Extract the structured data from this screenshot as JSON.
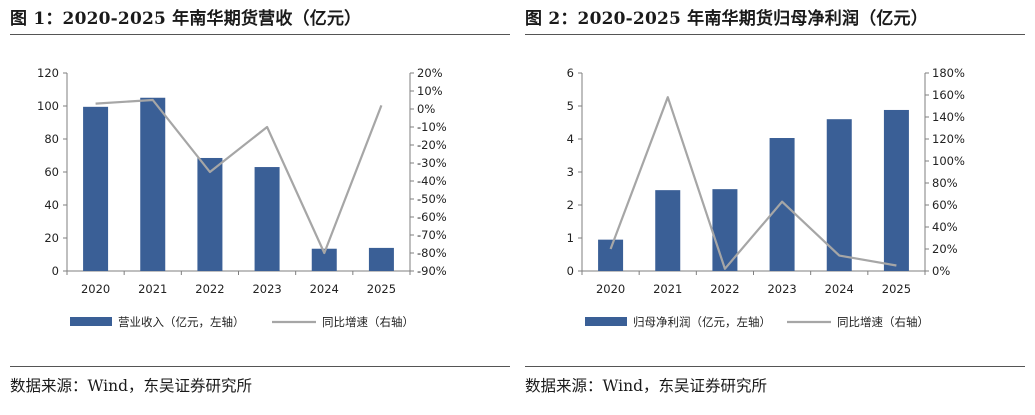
{
  "chart_data": [
    {
      "type": "bar",
      "title": "图 1：2020-2025 年南华期货营收（亿元）",
      "categories": [
        "2020",
        "2021",
        "2022",
        "2023",
        "2024",
        "2025"
      ],
      "series": [
        {
          "name": "营业收入（亿元，左轴）",
          "kind": "bar",
          "axis": "left",
          "values": [
            99.5,
            105,
            68.5,
            63,
            13.5,
            14
          ]
        },
        {
          "name": "同比增速（右轴）",
          "kind": "line",
          "axis": "right",
          "values": [
            3,
            5,
            -35,
            -10,
            -80,
            2
          ]
        }
      ],
      "left_axis": {
        "ylim": [
          0,
          120
        ],
        "ticks": [
          0,
          20,
          40,
          60,
          80,
          100,
          120
        ],
        "labels": [
          "0",
          "20",
          "40",
          "60",
          "80",
          "100",
          "120"
        ]
      },
      "right_axis": {
        "ylim": [
          -90,
          20
        ],
        "ticks": [
          -90,
          -80,
          -70,
          -60,
          -50,
          -40,
          -30,
          -20,
          -10,
          0,
          10,
          20
        ],
        "labels": [
          "-90%",
          "-80%",
          "-70%",
          "-60%",
          "-50%",
          "-40%",
          "-30%",
          "-20%",
          "-10%",
          "0%",
          "10%",
          "20%"
        ]
      },
      "source": "数据来源：Wind，东吴证券研究所",
      "legend_position": "bottom",
      "colors": {
        "bar": "#3a5f96",
        "line": "#a6a6a6"
      }
    },
    {
      "type": "bar",
      "title": "图 2：2020-2025 年南华期货归母净利润（亿元）",
      "categories": [
        "2020",
        "2021",
        "2022",
        "2023",
        "2024",
        "2025"
      ],
      "series": [
        {
          "name": "归母净利润（亿元，左轴）",
          "kind": "bar",
          "axis": "left",
          "values": [
            0.95,
            2.45,
            2.48,
            4.03,
            4.6,
            4.88
          ]
        },
        {
          "name": "同比增速（右轴）",
          "kind": "line",
          "axis": "right",
          "values": [
            20,
            158,
            2,
            63,
            14,
            5
          ]
        }
      ],
      "left_axis": {
        "ylim": [
          0,
          6
        ],
        "ticks": [
          0,
          1,
          2,
          3,
          4,
          5,
          6
        ],
        "labels": [
          "0",
          "1",
          "2",
          "3",
          "4",
          "5",
          "6"
        ]
      },
      "right_axis": {
        "ylim": [
          0,
          180
        ],
        "ticks": [
          0,
          20,
          40,
          60,
          80,
          100,
          120,
          140,
          160,
          180
        ],
        "labels": [
          "0%",
          "20%",
          "40%",
          "60%",
          "80%",
          "100%",
          "120%",
          "140%",
          "160%",
          "180%"
        ]
      },
      "source": "数据来源：Wind，东吴证券研究所",
      "legend_position": "bottom",
      "colors": {
        "bar": "#3a5f96",
        "line": "#a6a6a6"
      }
    }
  ]
}
